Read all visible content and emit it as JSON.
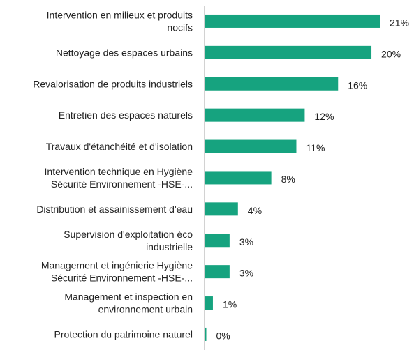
{
  "chart_data": {
    "type": "bar",
    "orientation": "horizontal",
    "categories": [
      [
        "Intervention en milieux et produits",
        "nocifs"
      ],
      [
        "Nettoyage des espaces urbains"
      ],
      [
        "Revalorisation de produits industriels"
      ],
      [
        "Entretien des espaces naturels"
      ],
      [
        "Travaux d'étanchéité et d'isolation"
      ],
      [
        "Intervention technique  en Hygiène",
        "Sécurité Environnement  -HSE-..."
      ],
      [
        "Distribution et assainissement d'eau"
      ],
      [
        "Supervision d'exploitation éco",
        "industrielle"
      ],
      [
        "Management et ingénierie Hygiène",
        "Sécurité Environnement  -HSE-..."
      ],
      [
        "Management et inspection en",
        "environnement urbain"
      ],
      [
        "Protection du patrimoine naturel"
      ]
    ],
    "values": [
      21,
      20,
      16,
      12,
      11,
      8,
      4,
      3,
      3,
      1,
      0
    ],
    "value_labels": [
      "21%",
      "20%",
      "16%",
      "12%",
      "11%",
      "8%",
      "4%",
      "3%",
      "3%",
      "1%",
      "0%"
    ],
    "xlim": [
      0,
      21
    ],
    "bar_color": "#16a37f",
    "axis_color": "#a6a6a6",
    "grid": false,
    "legend": "none"
  }
}
